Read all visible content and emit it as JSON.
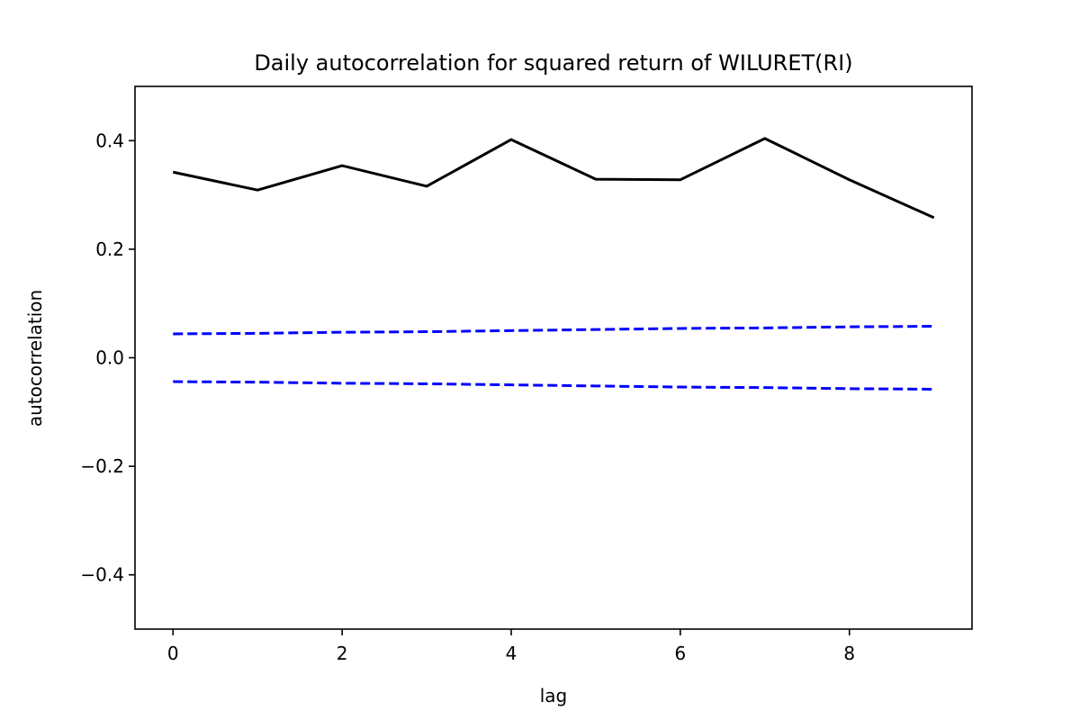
{
  "chart_data": {
    "type": "line",
    "title": "Daily autocorrelation for squared return of WILURET(RI)",
    "xlabel": "lag",
    "ylabel": "autocorrelation",
    "xlim": [
      -0.45,
      9.45
    ],
    "ylim": [
      -0.5,
      0.5
    ],
    "x_ticks": [
      0,
      2,
      4,
      6,
      8
    ],
    "y_ticks": [
      -0.4,
      -0.2,
      0.0,
      0.2,
      0.4
    ],
    "x_tick_labels": [
      "0",
      "2",
      "4",
      "6",
      "8"
    ],
    "y_tick_labels": [
      "−0.4",
      "−0.2",
      "0.0",
      "0.2",
      "0.4"
    ],
    "grid": false,
    "legend": "none",
    "x": [
      0,
      1,
      2,
      3,
      4,
      5,
      6,
      7,
      8,
      9
    ],
    "series": [
      {
        "style": "solid",
        "color": "#000000",
        "values": [
          0.342,
          0.309,
          0.354,
          0.316,
          0.402,
          0.329,
          0.328,
          0.404,
          0.328,
          0.258
        ]
      },
      {
        "style": "dashed",
        "color": "#0000ff",
        "values": [
          0.044,
          0.045,
          0.047,
          0.048,
          0.05,
          0.052,
          0.054,
          0.055,
          0.057,
          0.058
        ]
      },
      {
        "style": "dashed",
        "color": "#0000ff",
        "values": [
          -0.044,
          -0.045,
          -0.047,
          -0.048,
          -0.05,
          -0.052,
          -0.054,
          -0.055,
          -0.057,
          -0.058
        ]
      }
    ]
  }
}
